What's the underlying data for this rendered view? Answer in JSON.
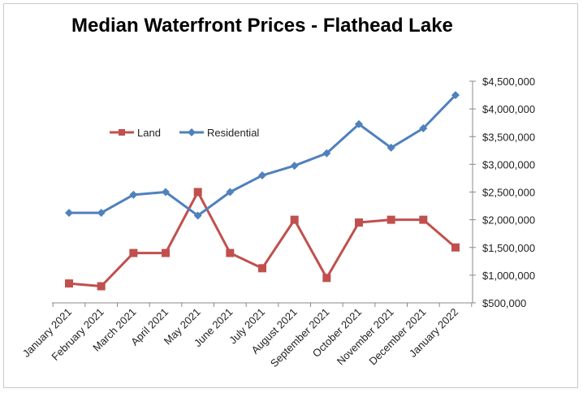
{
  "chart_data": {
    "type": "line",
    "title": "Median Waterfront Prices - Flathead Lake",
    "xlabel": "",
    "ylabel": "",
    "categories": [
      "January 2021",
      "February 2021",
      "March 2021",
      "April 2021",
      "May 2021",
      "June 2021",
      "July 2021",
      "August 2021",
      "September 2021",
      "October 2021",
      "November 2021",
      "December 2021",
      "January 2022"
    ],
    "series": [
      {
        "name": "Land",
        "color": "#c0504d",
        "marker": "square",
        "values": [
          850000,
          800000,
          1400000,
          1400000,
          2500000,
          1400000,
          1125000,
          2000000,
          950000,
          1950000,
          2000000,
          2000000,
          1500000
        ]
      },
      {
        "name": "Residential",
        "color": "#4f81bd",
        "marker": "diamond",
        "values": [
          2125000,
          2125000,
          2450000,
          2500000,
          2075000,
          2500000,
          2800000,
          2975000,
          3200000,
          3725000,
          3300000,
          3650000,
          4250000
        ]
      }
    ],
    "ylim": [
      500000,
      4500000
    ],
    "y_ticks": [
      500000,
      1000000,
      1500000,
      2000000,
      2500000,
      3000000,
      3500000,
      4000000,
      4500000
    ],
    "y_tick_labels": [
      "$500,000",
      "$1,000,000",
      "$1,500,000",
      "$2,000,000",
      "$2,500,000",
      "$3,000,000",
      "$3,500,000",
      "$4,000,000",
      "$4,500,000"
    ],
    "y_axis_side": "right",
    "grid": false,
    "legend_position": "top-left"
  }
}
